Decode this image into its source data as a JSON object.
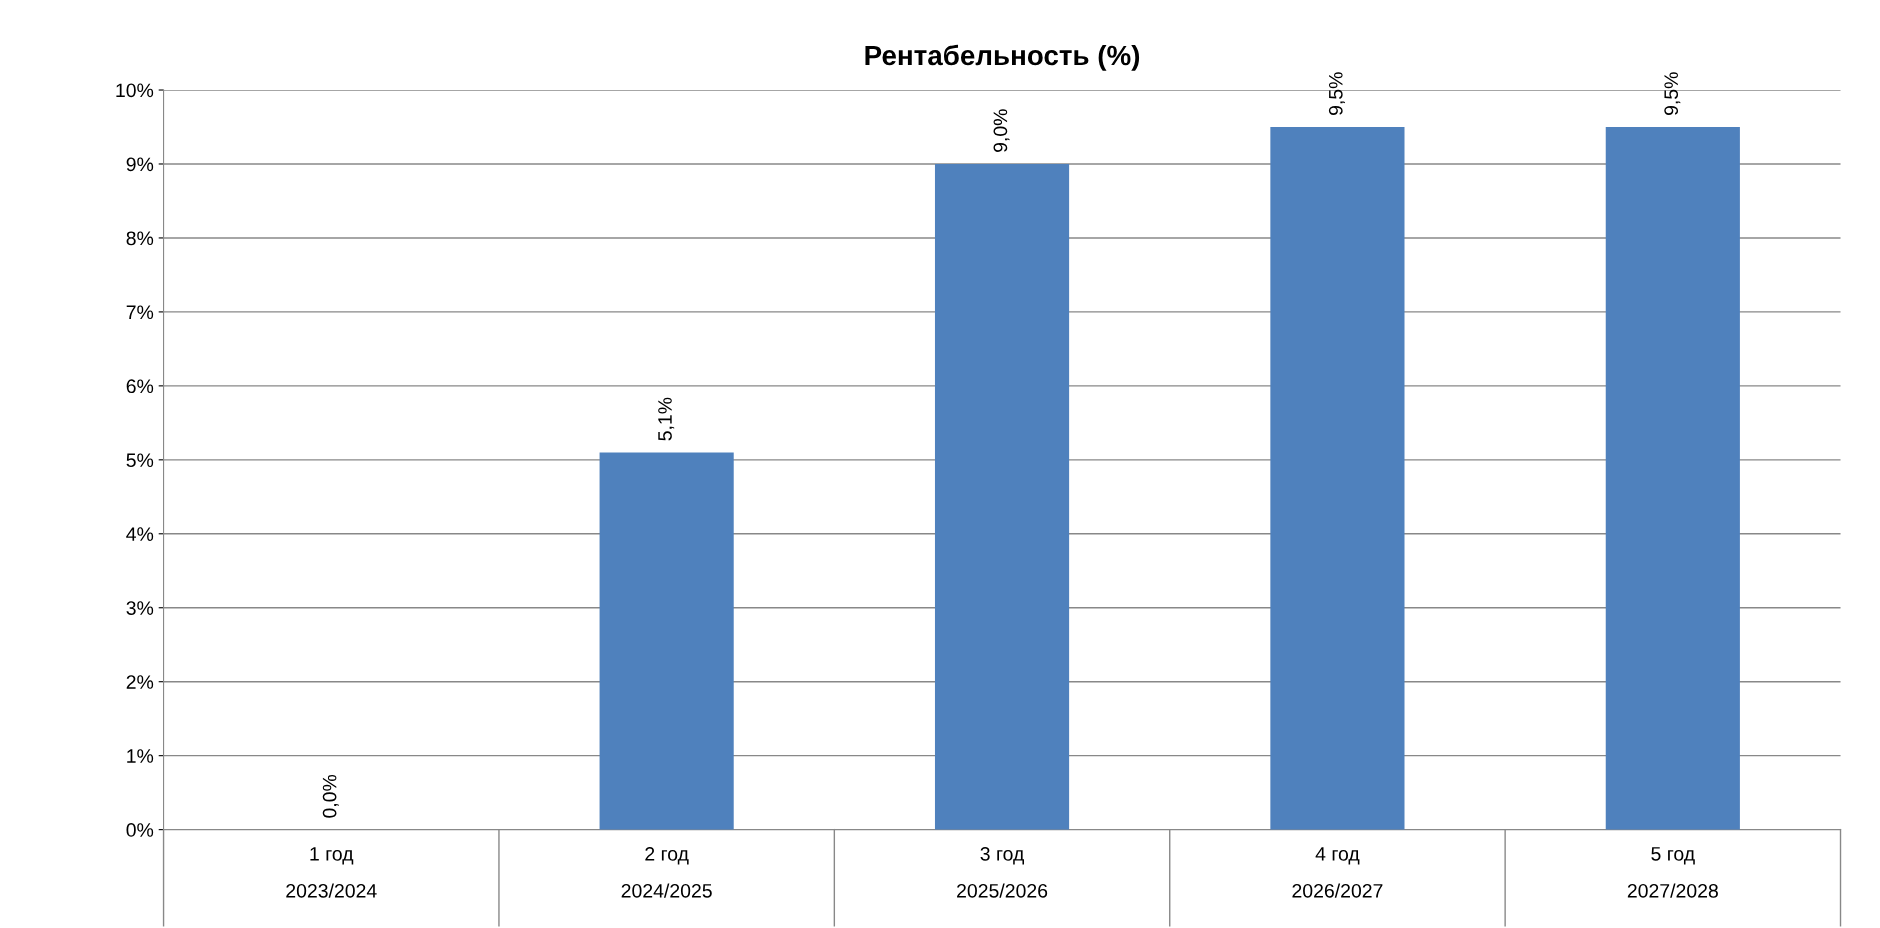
{
  "chart_data": {
    "type": "bar",
    "title": "Рентабельность (%)",
    "categories": [
      "1 год\n2023/2024",
      "2 год\n2024/2025",
      "3 год\n2025/2026",
      "4 год\n2026/2027",
      "5 год\n2027/2028"
    ],
    "values": [
      0.0,
      5.1,
      9.0,
      9.5,
      9.5
    ],
    "color": "#4f81bd",
    "value_labels": [
      "0,0%",
      "5,1%",
      "9,0%",
      "9,5%",
      "9,5%"
    ],
    "ylim": [
      0,
      10
    ],
    "yticks": [
      {
        "value": 0,
        "label": "0%"
      },
      {
        "value": 1,
        "label": "1%"
      },
      {
        "value": 2,
        "label": "2%"
      },
      {
        "value": 3,
        "label": "3%"
      },
      {
        "value": 4,
        "label": "4%"
      },
      {
        "value": 5,
        "label": "5%"
      },
      {
        "value": 6,
        "label": "6%"
      },
      {
        "value": 7,
        "label": "7%"
      },
      {
        "value": 8,
        "label": "8%"
      },
      {
        "value": 9,
        "label": "9%"
      },
      {
        "value": 10,
        "label": "10%"
      }
    ],
    "grid": "y"
  }
}
